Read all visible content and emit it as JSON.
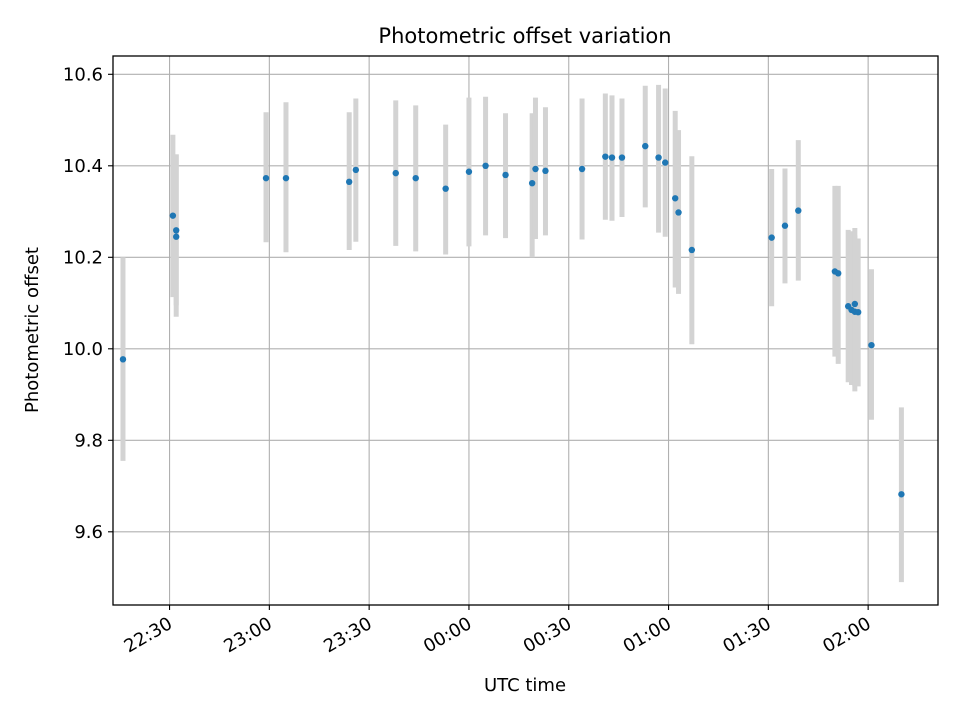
{
  "chart_data": {
    "type": "scatter",
    "title": "Photometric offset variation",
    "xlabel": "UTC time",
    "ylabel": "Photometric offset",
    "x_axis": {
      "start": "2023-01-01 22:13",
      "end": "2023-01-02 02:21",
      "ticks": [
        "22:30",
        "23:00",
        "23:30",
        "00:00",
        "00:30",
        "01:00",
        "01:30",
        "02:00"
      ],
      "tick_values": [
        "2023-01-01 22:30",
        "2023-01-01 23:00",
        "2023-01-01 23:30",
        "2023-01-02 00:00",
        "2023-01-02 00:30",
        "2023-01-02 01:00",
        "2023-01-02 01:30",
        "2023-01-02 02:00"
      ]
    },
    "y_axis": {
      "min": 9.44,
      "max": 10.64,
      "ticks": [
        9.6,
        9.8,
        10.0,
        10.2,
        10.4,
        10.6
      ],
      "tick_labels": [
        "9.6",
        "9.8",
        "10.0",
        "10.2",
        "10.4",
        "10.6"
      ]
    },
    "grid": true,
    "marker_color": "#1f77b4",
    "errorbar_color": "#d3d3d3",
    "points": [
      {
        "t": "2023-01-01 22:16",
        "y": 9.977,
        "low": 9.755,
        "high": 10.2
      },
      {
        "t": "2023-01-01 22:31",
        "y": 10.291,
        "low": 10.113,
        "high": 10.468
      },
      {
        "t": "2023-01-01 22:32",
        "y": 10.259,
        "low": 10.07,
        "high": 10.425
      },
      {
        "t": "2023-01-01 22:32",
        "y": 10.245,
        "low": 10.095,
        "high": 10.425
      },
      {
        "t": "2023-01-01 22:59",
        "y": 10.373,
        "low": 10.233,
        "high": 10.517
      },
      {
        "t": "2023-01-01 23:05",
        "y": 10.373,
        "low": 10.211,
        "high": 10.539
      },
      {
        "t": "2023-01-01 23:24",
        "y": 10.365,
        "low": 10.216,
        "high": 10.517
      },
      {
        "t": "2023-01-01 23:26",
        "y": 10.391,
        "low": 10.234,
        "high": 10.547
      },
      {
        "t": "2023-01-01 23:38",
        "y": 10.384,
        "low": 10.225,
        "high": 10.543
      },
      {
        "t": "2023-01-01 23:44",
        "y": 10.373,
        "low": 10.213,
        "high": 10.532
      },
      {
        "t": "2023-01-01 23:53",
        "y": 10.35,
        "low": 10.206,
        "high": 10.49
      },
      {
        "t": "2023-01-02 00:00",
        "y": 10.387,
        "low": 10.224,
        "high": 10.549
      },
      {
        "t": "2023-01-02 00:05",
        "y": 10.4,
        "low": 10.248,
        "high": 10.551
      },
      {
        "t": "2023-01-02 00:11",
        "y": 10.38,
        "low": 10.242,
        "high": 10.515
      },
      {
        "t": "2023-01-02 00:19",
        "y": 10.362,
        "low": 10.2,
        "high": 10.515
      },
      {
        "t": "2023-01-02 00:20",
        "y": 10.393,
        "low": 10.24,
        "high": 10.549
      },
      {
        "t": "2023-01-02 00:23",
        "y": 10.389,
        "low": 10.248,
        "high": 10.528
      },
      {
        "t": "2023-01-02 00:34",
        "y": 10.393,
        "low": 10.239,
        "high": 10.547
      },
      {
        "t": "2023-01-02 00:41",
        "y": 10.42,
        "low": 10.282,
        "high": 10.558
      },
      {
        "t": "2023-01-02 00:43",
        "y": 10.418,
        "low": 10.28,
        "high": 10.554
      },
      {
        "t": "2023-01-02 00:46",
        "y": 10.418,
        "low": 10.288,
        "high": 10.547
      },
      {
        "t": "2023-01-02 00:53",
        "y": 10.443,
        "low": 10.309,
        "high": 10.575
      },
      {
        "t": "2023-01-02 00:57",
        "y": 10.418,
        "low": 10.254,
        "high": 10.577
      },
      {
        "t": "2023-01-02 00:59",
        "y": 10.407,
        "low": 10.245,
        "high": 10.569
      },
      {
        "t": "2023-01-02 01:02",
        "y": 10.329,
        "low": 10.134,
        "high": 10.52
      },
      {
        "t": "2023-01-02 01:03",
        "y": 10.298,
        "low": 10.12,
        "high": 10.478
      },
      {
        "t": "2023-01-02 01:07",
        "y": 10.216,
        "low": 10.01,
        "high": 10.421
      },
      {
        "t": "2023-01-02 01:31",
        "y": 10.243,
        "low": 10.093,
        "high": 10.393
      },
      {
        "t": "2023-01-02 01:35",
        "y": 10.269,
        "low": 10.143,
        "high": 10.394
      },
      {
        "t": "2023-01-02 01:39",
        "y": 10.302,
        "low": 10.149,
        "high": 10.456
      },
      {
        "t": "2023-01-02 01:50",
        "y": 10.169,
        "low": 9.983,
        "high": 10.356
      },
      {
        "t": "2023-01-02 01:51",
        "y": 10.165,
        "low": 9.967,
        "high": 10.356
      },
      {
        "t": "2023-01-02 01:54",
        "y": 10.093,
        "low": 9.927,
        "high": 10.26
      },
      {
        "t": "2023-01-02 01:55",
        "y": 10.085,
        "low": 9.921,
        "high": 10.257
      },
      {
        "t": "2023-01-02 01:56",
        "y": 10.098,
        "low": 9.907,
        "high": 10.264
      },
      {
        "t": "2023-01-02 01:56",
        "y": 10.081,
        "low": 9.918,
        "high": 10.248
      },
      {
        "t": "2023-01-02 01:57",
        "y": 10.08,
        "low": 9.918,
        "high": 10.241
      },
      {
        "t": "2023-01-02 02:01",
        "y": 10.008,
        "low": 9.845,
        "high": 10.174
      },
      {
        "t": "2023-01-02 02:10",
        "y": 9.682,
        "low": 9.49,
        "high": 9.872
      }
    ]
  }
}
